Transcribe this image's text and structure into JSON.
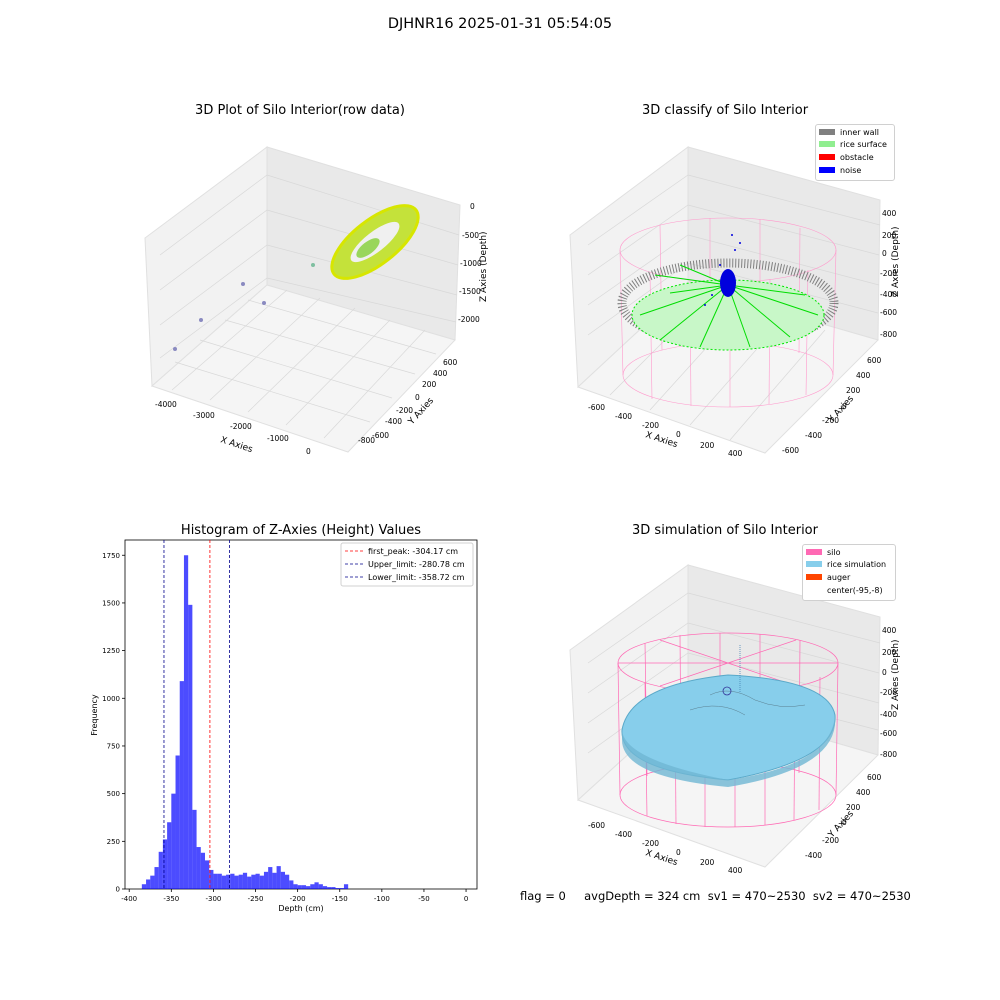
{
  "figure": {
    "suptitle": "DJHNR16 2025-01-31 05:54:05",
    "info_text": "flag = 0     avgDepth = 324 cm  sv1 = 470~2530  sv2 = 470~2530"
  },
  "plot1": {
    "title": "3D Plot of Silo Interior(row data)",
    "xlabel": "X Axies",
    "ylabel": "Y Axies",
    "zlabel": "Z Axies (Depth)",
    "xticks": [
      "-4000",
      "-3000",
      "-2000",
      "-1000",
      "0"
    ],
    "yticks": [
      "-800",
      "-600",
      "-400",
      "-200",
      "0",
      "200",
      "400",
      "600"
    ],
    "zticks": [
      "0",
      "-500",
      "-1000",
      "-1500",
      "-2000"
    ]
  },
  "plot2": {
    "title": "3D classify of Silo Interior",
    "xlabel": "X Axies",
    "ylabel": "Y Axies",
    "zlabel": "Z Axies (Depth)",
    "xticks": [
      "-600",
      "-400",
      "-200",
      "0",
      "200",
      "400"
    ],
    "yticks": [
      "-600",
      "-400",
      "-200",
      "0",
      "200",
      "400",
      "600"
    ],
    "zticks": [
      "400",
      "200",
      "0",
      "-200",
      "-400",
      "-600",
      "-800"
    ],
    "legend": [
      {
        "label": "inner wall",
        "color": "#808080"
      },
      {
        "label": "rice surface",
        "color": "#90ee90"
      },
      {
        "label": "obstacle",
        "color": "#ff0000"
      },
      {
        "label": "noise",
        "color": "#0000ff"
      }
    ]
  },
  "plot4": {
    "title": "3D simulation of Silo Interior",
    "xlabel": "X Axies",
    "ylabel": "Y Axies",
    "zlabel": "Z Axies (Depth)",
    "xticks": [
      "-600",
      "-400",
      "-200",
      "0",
      "200",
      "400"
    ],
    "yticks": [
      "-400",
      "-200",
      "0",
      "200",
      "400",
      "600"
    ],
    "zticks": [
      "400",
      "200",
      "0",
      "-200",
      "-400",
      "-600",
      "-800"
    ],
    "legend": [
      {
        "label": "silo",
        "color": "#ff69b4"
      },
      {
        "label": "rice simulation",
        "color": "#87ceeb"
      },
      {
        "label": "auger",
        "color": "#ff4500"
      },
      {
        "label": "center(-95,-8)",
        "color": "#ffffff"
      }
    ]
  },
  "chart_data": {
    "type": "bar",
    "title": "Histogram of Z-Axies (Height) Values",
    "xlabel": "Depth (cm)",
    "ylabel": "Frequency",
    "xlim": [
      -405,
      13
    ],
    "ylim": [
      0,
      1830
    ],
    "xticks": [
      -400,
      -350,
      -300,
      -250,
      -200,
      -150,
      -100,
      -50,
      0
    ],
    "yticks": [
      0,
      250,
      500,
      750,
      1000,
      1250,
      1500,
      1750
    ],
    "bin_start": -385,
    "bin_width": 5,
    "values": [
      25,
      50,
      70,
      115,
      195,
      260,
      350,
      500,
      700,
      1090,
      1750,
      1490,
      415,
      220,
      190,
      150,
      100,
      80,
      80,
      70,
      75,
      80,
      70,
      75,
      85,
      65,
      75,
      80,
      70,
      90,
      115,
      85,
      120,
      90,
      75,
      45,
      25,
      20,
      20,
      15,
      25,
      35,
      25,
      15,
      10,
      10,
      5,
      5,
      25
    ],
    "bar_color": "#0000ff",
    "vlines": [
      {
        "label": "first_peak: -304.17 cm",
        "x": -304.17,
        "color": "#ff0000"
      },
      {
        "label": "Upper_limit: -280.78 cm",
        "x": -280.78,
        "color": "#00008b"
      },
      {
        "label": "Lower_limit: -358.72 cm",
        "x": -358.72,
        "color": "#00008b"
      }
    ],
    "legend_position": "top-right"
  }
}
